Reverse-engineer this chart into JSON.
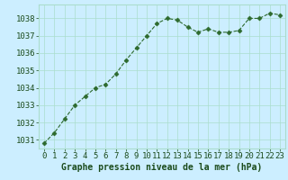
{
  "x": [
    0,
    1,
    2,
    3,
    4,
    5,
    6,
    7,
    8,
    9,
    10,
    11,
    12,
    13,
    14,
    15,
    16,
    17,
    18,
    19,
    20,
    21,
    22,
    23
  ],
  "y": [
    1030.8,
    1031.4,
    1032.2,
    1033.0,
    1033.5,
    1034.0,
    1034.2,
    1034.8,
    1035.6,
    1036.3,
    1037.0,
    1037.7,
    1038.0,
    1037.9,
    1037.5,
    1037.2,
    1037.4,
    1037.2,
    1037.2,
    1037.3,
    1038.0,
    1038.0,
    1038.3,
    1038.2
  ],
  "line_color": "#2d6a2d",
  "marker": "D",
  "marker_size": 2.5,
  "bg_color": "#cceeff",
  "grid_color": "#aaddcc",
  "xlabel": "Graphe pression niveau de la mer (hPa)",
  "xlabel_color": "#1a4a1a",
  "xlabel_fontsize": 7.0,
  "tick_color": "#1a4a1a",
  "tick_fontsize": 6.5,
  "ylim": [
    1030.5,
    1038.8
  ],
  "yticks": [
    1031,
    1032,
    1033,
    1034,
    1035,
    1036,
    1037,
    1038
  ],
  "xlim": [
    -0.5,
    23.5
  ],
  "xticks": [
    0,
    1,
    2,
    3,
    4,
    5,
    6,
    7,
    8,
    9,
    10,
    11,
    12,
    13,
    14,
    15,
    16,
    17,
    18,
    19,
    20,
    21,
    22,
    23
  ]
}
